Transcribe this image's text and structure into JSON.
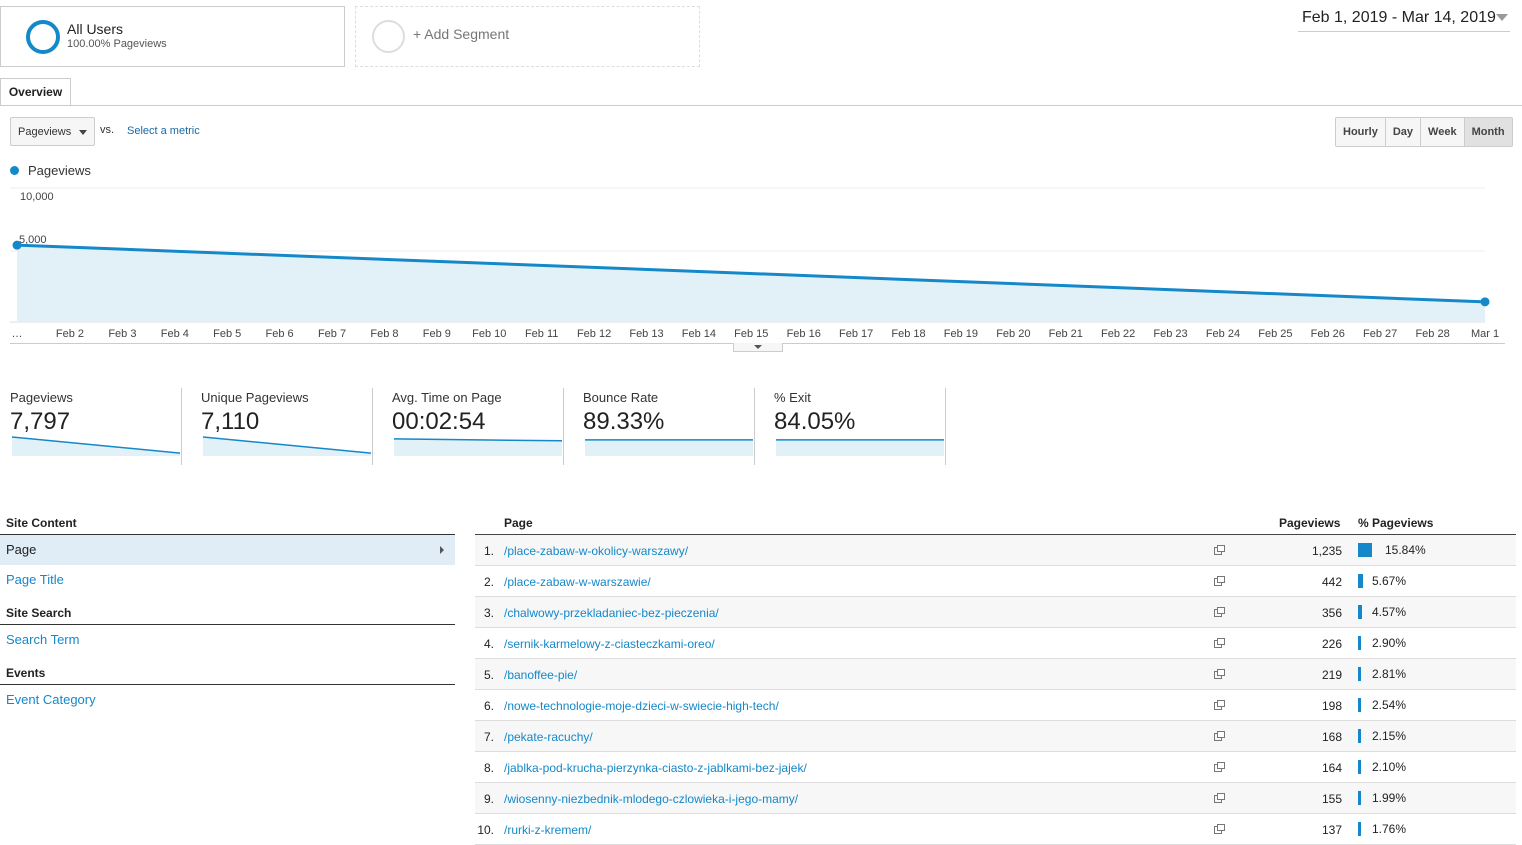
{
  "segments": {
    "all_users_title": "All Users",
    "all_users_sub": "100.00% Pageviews",
    "add_segment": "+ Add Segment"
  },
  "date_range": "Feb 1, 2019 - Mar 14, 2019",
  "tabs": {
    "overview": "Overview"
  },
  "controls": {
    "metric": "Pageviews",
    "vs": "vs.",
    "select_metric": "Select a metric",
    "granularity": [
      "Hourly",
      "Day",
      "Week",
      "Month"
    ],
    "granularity_active": "Month"
  },
  "colors": {
    "accent": "#1488c9",
    "fill": "#e2f0f8",
    "link": "#1488c9"
  },
  "chart_data": {
    "type": "area",
    "series": [
      {
        "name": "Pageviews",
        "values": [
          6100,
          1600
        ]
      }
    ],
    "x_ticks": [
      "…",
      "Feb 2",
      "Feb 3",
      "Feb 4",
      "Feb 5",
      "Feb 6",
      "Feb 7",
      "Feb 8",
      "Feb 9",
      "Feb 10",
      "Feb 11",
      "Feb 12",
      "Feb 13",
      "Feb 14",
      "Feb 15",
      "Feb 16",
      "Feb 17",
      "Feb 18",
      "Feb 19",
      "Feb 20",
      "Feb 21",
      "Feb 22",
      "Feb 23",
      "Feb 24",
      "Feb 25",
      "Feb 26",
      "Feb 27",
      "Feb 28",
      "Mar 1"
    ],
    "y_ticks": [
      "10,000",
      "5,000"
    ],
    "ylim": [
      0,
      10000
    ],
    "grid": true,
    "legend": "top-left"
  },
  "scorecards": [
    {
      "label": "Pageviews",
      "value": "7,797",
      "trend": [
        1,
        0.15
      ]
    },
    {
      "label": "Unique Pageviews",
      "value": "7,110",
      "trend": [
        1,
        0.15
      ]
    },
    {
      "label": "Avg. Time on Page",
      "value": "00:02:54",
      "trend": [
        0.9,
        0.8
      ]
    },
    {
      "label": "Bounce Rate",
      "value": "89.33%",
      "trend": [
        0.85,
        0.85
      ]
    },
    {
      "label": "% Exit",
      "value": "84.05%",
      "trend": [
        0.85,
        0.85
      ]
    }
  ],
  "nav": {
    "site_content": "Site Content",
    "page": "Page",
    "page_title": "Page Title",
    "site_search": "Site Search",
    "search_term": "Search Term",
    "events": "Events",
    "event_category": "Event Category"
  },
  "table": {
    "headers": {
      "page": "Page",
      "pageviews": "Pageviews",
      "pct": "% Pageviews"
    },
    "rows": [
      {
        "n": "1.",
        "page": "/place-zabaw-w-okolicy-warszawy/",
        "pageviews": "1,235",
        "pct": "15.84%",
        "share": 15.84
      },
      {
        "n": "2.",
        "page": "/place-zabaw-w-warszawie/",
        "pageviews": "442",
        "pct": "5.67%",
        "share": 5.67
      },
      {
        "n": "3.",
        "page": "/chalwowy-przekladaniec-bez-pieczenia/",
        "pageviews": "356",
        "pct": "4.57%",
        "share": 4.57
      },
      {
        "n": "4.",
        "page": "/sernik-karmelowy-z-ciasteczkami-oreo/",
        "pageviews": "226",
        "pct": "2.90%",
        "share": 2.9
      },
      {
        "n": "5.",
        "page": "/banoffee-pie/",
        "pageviews": "219",
        "pct": "2.81%",
        "share": 2.81
      },
      {
        "n": "6.",
        "page": "/nowe-technologie-moje-dzieci-w-swiecie-high-tech/",
        "pageviews": "198",
        "pct": "2.54%",
        "share": 2.54
      },
      {
        "n": "7.",
        "page": "/pekate-racuchy/",
        "pageviews": "168",
        "pct": "2.15%",
        "share": 2.15
      },
      {
        "n": "8.",
        "page": "/jablka-pod-krucha-pierzynka-ciasto-z-jablkami-bez-jajek/",
        "pageviews": "164",
        "pct": "2.10%",
        "share": 2.1
      },
      {
        "n": "9.",
        "page": "/wiosenny-niezbednik-mlodego-czlowieka-i-jego-mamy/",
        "pageviews": "155",
        "pct": "1.99%",
        "share": 1.99
      },
      {
        "n": "10.",
        "page": "/rurki-z-kremem/",
        "pageviews": "137",
        "pct": "1.76%",
        "share": 1.76
      }
    ]
  }
}
